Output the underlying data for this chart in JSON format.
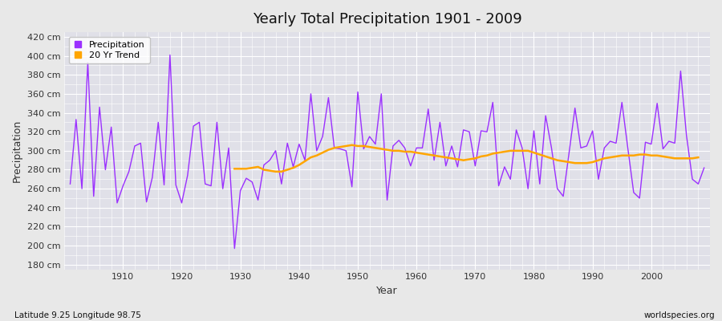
{
  "title": "Yearly Total Precipitation 1901 - 2009",
  "xlabel": "Year",
  "ylabel": "Precipitation",
  "subtitle": "Latitude 9.25 Longitude 98.75",
  "watermark": "worldspecies.org",
  "precip_color": "#9B30FF",
  "trend_color": "#FFA500",
  "fig_bg_color": "#E8E8E8",
  "plot_bg_color": "#E0E0E8",
  "ylim": [
    175,
    425
  ],
  "yticks": [
    180,
    200,
    220,
    240,
    260,
    280,
    300,
    320,
    340,
    360,
    380,
    400,
    420
  ],
  "xlim": [
    1900,
    2010
  ],
  "xticks": [
    1910,
    1920,
    1930,
    1940,
    1950,
    1960,
    1970,
    1980,
    1990,
    2000
  ],
  "years": [
    1901,
    1902,
    1903,
    1904,
    1905,
    1906,
    1907,
    1908,
    1909,
    1910,
    1911,
    1912,
    1913,
    1914,
    1915,
    1916,
    1917,
    1918,
    1919,
    1920,
    1921,
    1922,
    1923,
    1924,
    1925,
    1926,
    1927,
    1928,
    1929,
    1930,
    1931,
    1932,
    1933,
    1934,
    1935,
    1936,
    1937,
    1938,
    1939,
    1940,
    1941,
    1942,
    1943,
    1944,
    1945,
    1946,
    1947,
    1948,
    1949,
    1950,
    1951,
    1952,
    1953,
    1954,
    1955,
    1956,
    1957,
    1958,
    1959,
    1960,
    1961,
    1962,
    1963,
    1964,
    1965,
    1966,
    1967,
    1968,
    1969,
    1970,
    1971,
    1972,
    1973,
    1974,
    1975,
    1976,
    1977,
    1978,
    1979,
    1980,
    1981,
    1982,
    1983,
    1984,
    1985,
    1986,
    1987,
    1988,
    1989,
    1990,
    1991,
    1992,
    1993,
    1994,
    1995,
    1996,
    1997,
    1998,
    1999,
    2000,
    2001,
    2002,
    2003,
    2004,
    2005,
    2006,
    2007,
    2008,
    2009
  ],
  "precip": [
    265,
    333,
    260,
    393,
    252,
    346,
    280,
    325,
    245,
    263,
    278,
    305,
    308,
    246,
    272,
    330,
    264,
    401,
    264,
    245,
    274,
    326,
    330,
    265,
    263,
    330,
    260,
    303,
    197,
    258,
    271,
    267,
    248,
    285,
    290,
    300,
    265,
    308,
    283,
    307,
    290,
    360,
    300,
    315,
    356,
    303,
    302,
    300,
    262,
    362,
    302,
    315,
    307,
    360,
    248,
    305,
    311,
    303,
    284,
    303,
    303,
    344,
    290,
    330,
    284,
    305,
    283,
    322,
    320,
    284,
    321,
    320,
    351,
    263,
    283,
    270,
    322,
    303,
    260,
    321,
    265,
    337,
    303,
    260,
    252,
    298,
    345,
    303,
    305,
    321,
    270,
    303,
    310,
    308,
    351,
    303,
    256,
    250,
    309,
    307,
    350,
    302,
    310,
    308,
    384,
    316,
    270,
    265,
    282
  ],
  "trend_start_year": 1929,
  "trend": [
    281,
    281,
    281,
    282,
    283,
    280,
    279,
    278,
    278,
    280,
    282,
    285,
    289,
    293,
    295,
    298,
    301,
    303,
    304,
    305,
    306,
    305,
    305,
    304,
    303,
    302,
    301,
    300,
    300,
    299,
    299,
    298,
    297,
    296,
    295,
    294,
    293,
    292,
    291,
    290,
    291,
    292,
    294,
    295,
    297,
    298,
    299,
    300,
    300,
    300,
    300,
    298,
    296,
    294,
    292,
    290,
    289,
    288,
    287,
    287,
    287,
    288,
    290,
    292,
    293,
    294,
    295,
    295,
    295,
    296,
    296,
    295,
    295,
    294,
    293,
    292,
    292,
    292,
    292,
    293
  ]
}
